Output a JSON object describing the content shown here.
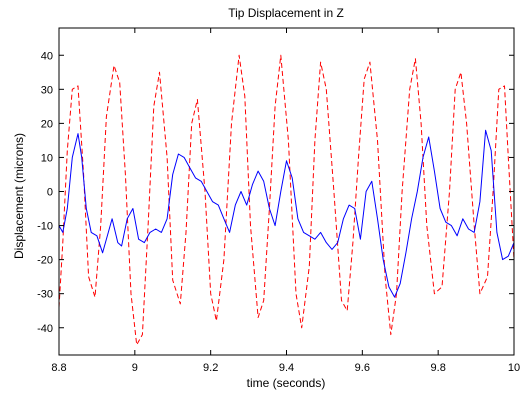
{
  "chart_data": {
    "type": "line",
    "title": "Tip Displacement in Z",
    "xlabel": "time (seconds)",
    "ylabel": "Displacement (microns)",
    "xlim": [
      8.8,
      10.0
    ],
    "ylim": [
      -48,
      48
    ],
    "xticks": [
      8.8,
      9.0,
      9.2,
      9.4,
      9.6,
      9.8,
      10.0
    ],
    "xtick_labels": [
      "8.8",
      "9",
      "9.2",
      "9.4",
      "9.6",
      "9.8",
      "10"
    ],
    "yticks": [
      -40,
      -30,
      -20,
      -10,
      0,
      10,
      20,
      30,
      40
    ],
    "ytick_labels": [
      "-40",
      "-30",
      "-20",
      "-10",
      "0",
      "10",
      "20",
      "30",
      "40"
    ],
    "grid": false,
    "series": [
      {
        "style": "dashed",
        "color": "#ff0000",
        "x": [
          8.8,
          8.81,
          8.822,
          8.835,
          8.85,
          8.865,
          8.878,
          8.895,
          8.91,
          8.925,
          8.945,
          8.96,
          8.975,
          8.99,
          9.005,
          9.02,
          9.035,
          9.05,
          9.065,
          9.085,
          9.1,
          9.12,
          9.135,
          9.15,
          9.165,
          9.185,
          9.2,
          9.215,
          9.235,
          9.255,
          9.275,
          9.29,
          9.305,
          9.325,
          9.34,
          9.355,
          9.37,
          9.385,
          9.405,
          9.425,
          9.44,
          9.46,
          9.475,
          9.49,
          9.505,
          9.525,
          9.545,
          9.56,
          9.575,
          9.59,
          9.605,
          9.62,
          9.64,
          9.66,
          9.675,
          9.69,
          9.705,
          9.725,
          9.74,
          9.755,
          9.77,
          9.79,
          9.81,
          9.83,
          9.845,
          9.86,
          9.875,
          9.895,
          9.91,
          9.93,
          9.945,
          9.96,
          9.975,
          9.985,
          10.0
        ],
        "y": [
          -34,
          -15,
          12,
          30,
          31,
          5,
          -25,
          -31,
          -10,
          22,
          37,
          32,
          5,
          -30,
          -45,
          -42,
          -10,
          25,
          35,
          10,
          -26,
          -33,
          -12,
          20,
          27,
          0,
          -30,
          -38,
          -20,
          20,
          40,
          28,
          -10,
          -37,
          -32,
          -5,
          25,
          40,
          15,
          -30,
          -40,
          -22,
          15,
          38,
          30,
          0,
          -32,
          -35,
          -15,
          10,
          33,
          38,
          15,
          -25,
          -42,
          -30,
          0,
          30,
          39,
          20,
          -10,
          -30,
          -28,
          0,
          30,
          35,
          20,
          -10,
          -30,
          -25,
          0,
          30,
          31,
          10,
          -20
        ]
      },
      {
        "style": "solid",
        "color": "#0000ff",
        "x": [
          8.8,
          8.81,
          8.822,
          8.835,
          8.85,
          8.86,
          8.872,
          8.885,
          8.9,
          8.915,
          8.93,
          8.94,
          8.955,
          8.965,
          8.98,
          8.995,
          9.01,
          9.025,
          9.04,
          9.055,
          9.07,
          9.085,
          9.1,
          9.115,
          9.13,
          9.145,
          9.16,
          9.175,
          9.19,
          9.205,
          9.22,
          9.235,
          9.25,
          9.265,
          9.28,
          9.295,
          9.31,
          9.325,
          9.34,
          9.355,
          9.37,
          9.385,
          9.4,
          9.415,
          9.43,
          9.445,
          9.46,
          9.475,
          9.49,
          9.505,
          9.52,
          9.535,
          9.55,
          9.565,
          9.58,
          9.595,
          9.61,
          9.625,
          9.64,
          9.655,
          9.67,
          9.685,
          9.7,
          9.715,
          9.73,
          9.745,
          9.76,
          9.775,
          9.79,
          9.805,
          9.82,
          9.835,
          9.85,
          9.865,
          9.88,
          9.895,
          9.91,
          9.925,
          9.94,
          9.955,
          9.97,
          9.985,
          10.0
        ],
        "y": [
          -10,
          -12,
          -5,
          10,
          17,
          10,
          -5,
          -12,
          -13,
          -18,
          -12,
          -8,
          -15,
          -16,
          -8,
          -5,
          -14,
          -15,
          -12,
          -11,
          -12,
          -8,
          5,
          11,
          10,
          7,
          4,
          3,
          0,
          -3,
          -4,
          -8,
          -12,
          -4,
          0,
          -4,
          2,
          6,
          3,
          -5,
          -10,
          0,
          9,
          4,
          -8,
          -12,
          -13,
          -14,
          -12,
          -15,
          -17,
          -15,
          -8,
          -4,
          -5,
          -14,
          0,
          3,
          -8,
          -20,
          -28,
          -31,
          -27,
          -18,
          -8,
          0,
          10,
          16,
          6,
          -5,
          -9,
          -10,
          -13,
          -8,
          -11,
          -12,
          -3,
          18,
          12,
          -12,
          -20,
          -19,
          -15
        ]
      }
    ]
  }
}
